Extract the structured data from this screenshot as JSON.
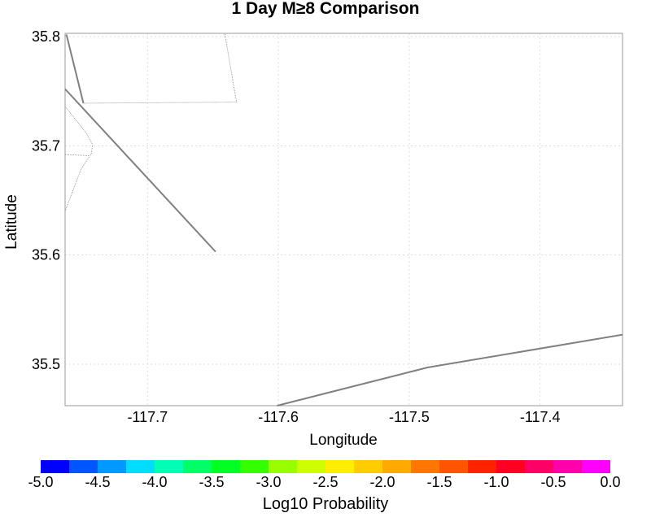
{
  "title": "1 Day M≥8 Comparison",
  "map": {
    "xlabel": "Longitude",
    "ylabel": "Latitude",
    "xlim": [
      -117.763,
      -117.337
    ],
    "ylim": [
      35.462,
      35.803
    ],
    "xticks": [
      {
        "value": -117.7,
        "label": "-117.7"
      },
      {
        "value": -117.6,
        "label": "-117.6"
      },
      {
        "value": -117.5,
        "label": "-117.5"
      },
      {
        "value": -117.4,
        "label": "-117.4"
      }
    ],
    "yticks": [
      {
        "value": 35.8,
        "label": "35.8"
      },
      {
        "value": 35.7,
        "label": "35.7"
      },
      {
        "value": 35.6,
        "label": "35.6"
      },
      {
        "value": 35.5,
        "label": "35.5"
      }
    ],
    "faults": [
      [
        [
          -117.763,
          35.752
        ],
        [
          -117.648,
          35.603
        ]
      ],
      [
        [
          -117.762,
          35.802
        ],
        [
          -117.749,
          35.739
        ]
      ],
      [
        [
          -117.601,
          35.462
        ],
        [
          -117.486,
          35.497
        ],
        [
          -117.337,
          35.527
        ]
      ]
    ],
    "boundaries": [
      [
        [
          -117.749,
          35.739
        ],
        [
          -117.632,
          35.74
        ],
        [
          -117.641,
          35.803
        ]
      ],
      [
        [
          -117.763,
          35.736
        ],
        [
          -117.747,
          35.712
        ],
        [
          -117.742,
          35.701
        ],
        [
          -117.743,
          35.693
        ],
        [
          -117.751,
          35.678
        ],
        [
          -117.763,
          35.64
        ]
      ],
      [
        [
          -117.763,
          35.692
        ],
        [
          -117.745,
          35.691
        ]
      ]
    ]
  },
  "colorbar": {
    "colors": [
      "#0000ff",
      "#0055ff",
      "#0099ff",
      "#00ddff",
      "#00ffb4",
      "#00ff66",
      "#00ff22",
      "#33ff00",
      "#99ff00",
      "#ccff00",
      "#ffee00",
      "#ffcc00",
      "#ffaa00",
      "#ff7700",
      "#ff5500",
      "#ff2200",
      "#ff0022",
      "#ff0066",
      "#ff00aa",
      "#ff00ff"
    ],
    "ticks": [
      "-5.0",
      "-4.5",
      "-4.0",
      "-3.5",
      "-3.0",
      "-2.5",
      "-2.0",
      "-1.5",
      "-1.0",
      "-0.5",
      "0.0"
    ],
    "label": "Log10 Probability",
    "range": [
      -5.0,
      0.0
    ]
  }
}
